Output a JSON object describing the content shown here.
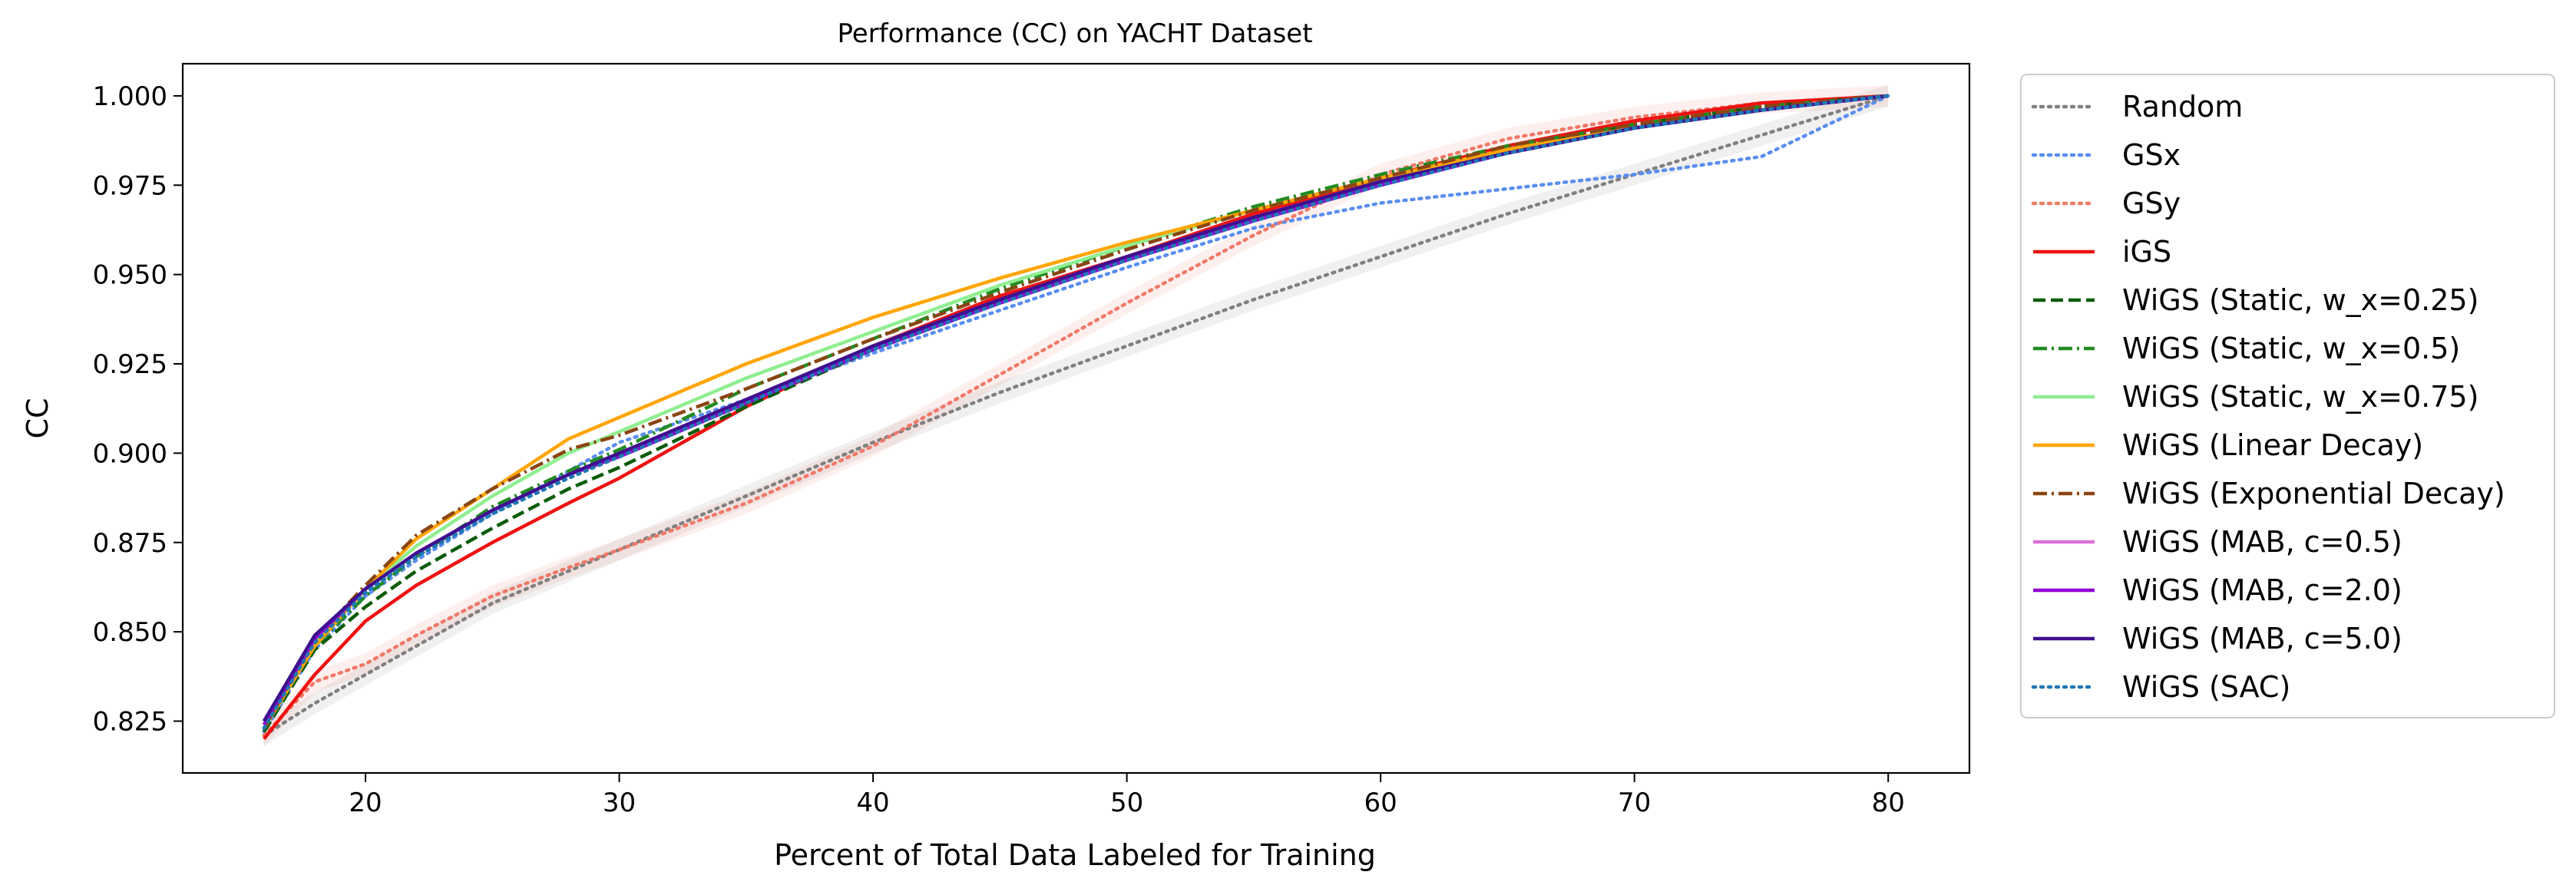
{
  "chart_data": {
    "type": "line",
    "title": "Performance (CC) on YACHT Dataset",
    "xlabel": "Percent of Total Data Labeled for Training",
    "ylabel": "CC",
    "xlim": [
      12.8,
      83.2
    ],
    "ylim": [
      0.8105,
      1.009
    ],
    "xticks": [
      20,
      30,
      40,
      50,
      60,
      70,
      80
    ],
    "xtick_labels": [
      "20",
      "30",
      "40",
      "50",
      "60",
      "70",
      "80"
    ],
    "yticks": [
      0.825,
      0.85,
      0.875,
      0.9,
      0.925,
      0.95,
      0.975,
      1.0
    ],
    "ytick_labels": [
      "0.825",
      "0.850",
      "0.875",
      "0.900",
      "0.925",
      "0.950",
      "0.975",
      "1.000"
    ],
    "grid": false,
    "legend_position": "outside-right",
    "series": [
      {
        "name": "Random",
        "color": "#808080",
        "dash": "dotted",
        "band": true,
        "x": [
          16,
          18,
          20,
          22,
          25,
          28,
          30,
          35,
          40,
          45,
          50,
          55,
          60,
          65,
          70,
          75,
          80
        ],
        "y": [
          0.821,
          0.83,
          0.838,
          0.846,
          0.858,
          0.867,
          0.873,
          0.888,
          0.903,
          0.917,
          0.93,
          0.943,
          0.955,
          0.967,
          0.978,
          0.989,
          1.0
        ]
      },
      {
        "name": "GSx",
        "color": "#5a8ef0",
        "dash": "dotted",
        "band": false,
        "x": [
          16,
          18,
          20,
          22,
          25,
          28,
          30,
          35,
          40,
          45,
          50,
          55,
          60,
          65,
          70,
          75,
          80
        ],
        "y": [
          0.822,
          0.845,
          0.86,
          0.87,
          0.883,
          0.895,
          0.903,
          0.915,
          0.928,
          0.94,
          0.952,
          0.963,
          0.97,
          0.974,
          0.978,
          0.983,
          1.0
        ]
      },
      {
        "name": "GSy",
        "color": "#f07868",
        "dash": "dotted",
        "band": true,
        "x": [
          16,
          18,
          20,
          22,
          25,
          28,
          30,
          35,
          40,
          45,
          50,
          55,
          60,
          65,
          70,
          75,
          80
        ],
        "y": [
          0.821,
          0.836,
          0.841,
          0.849,
          0.86,
          0.868,
          0.873,
          0.886,
          0.902,
          0.922,
          0.942,
          0.961,
          0.978,
          0.988,
          0.994,
          0.998,
          1.0
        ]
      },
      {
        "name": "iGS",
        "color": "#ee1111",
        "dash": "solid",
        "band": false,
        "x": [
          16,
          18,
          20,
          22,
          25,
          28,
          30,
          35,
          40,
          45,
          50,
          55,
          60,
          65,
          70,
          75,
          80
        ],
        "y": [
          0.82,
          0.838,
          0.853,
          0.863,
          0.875,
          0.886,
          0.893,
          0.913,
          0.93,
          0.944,
          0.955,
          0.967,
          0.977,
          0.986,
          0.993,
          0.998,
          1.0
        ]
      },
      {
        "name": "WiGS (Static, w_x=0.25)",
        "color": "#0a5c0a",
        "dash": "dashed",
        "band": false,
        "x": [
          16,
          18,
          20,
          22,
          25,
          28,
          30,
          35,
          40,
          45,
          50,
          55,
          60,
          65,
          70,
          75,
          80
        ],
        "y": [
          0.822,
          0.845,
          0.857,
          0.867,
          0.879,
          0.89,
          0.896,
          0.913,
          0.929,
          0.943,
          0.955,
          0.966,
          0.976,
          0.985,
          0.992,
          0.997,
          1.0
        ]
      },
      {
        "name": "WiGS (Static, w_x=0.5)",
        "color": "#228b22",
        "dash": "dashdot",
        "band": false,
        "x": [
          16,
          18,
          20,
          22,
          25,
          28,
          30,
          35,
          40,
          45,
          50,
          55,
          60,
          65,
          70,
          75,
          80
        ],
        "y": [
          0.823,
          0.846,
          0.86,
          0.871,
          0.885,
          0.895,
          0.901,
          0.918,
          0.932,
          0.946,
          0.958,
          0.969,
          0.978,
          0.986,
          0.992,
          0.997,
          1.0
        ]
      },
      {
        "name": "WiGS (Static, w_x=0.75)",
        "color": "#90ee90",
        "dash": "solid",
        "band": false,
        "x": [
          16,
          18,
          20,
          22,
          25,
          28,
          30,
          35,
          40,
          45,
          50,
          55,
          60,
          65,
          70,
          75,
          80
        ],
        "y": [
          0.823,
          0.847,
          0.862,
          0.874,
          0.888,
          0.9,
          0.906,
          0.921,
          0.934,
          0.947,
          0.958,
          0.968,
          0.977,
          0.985,
          0.991,
          0.996,
          1.0
        ]
      },
      {
        "name": "WiGS (Linear Decay)",
        "color": "#ffa500",
        "dash": "solid",
        "band": false,
        "x": [
          16,
          18,
          20,
          22,
          25,
          28,
          30,
          35,
          40,
          45,
          50,
          55,
          60,
          65,
          70,
          75,
          80
        ],
        "y": [
          0.823,
          0.846,
          0.862,
          0.876,
          0.89,
          0.904,
          0.91,
          0.925,
          0.938,
          0.949,
          0.959,
          0.968,
          0.977,
          0.985,
          0.991,
          0.996,
          1.0
        ]
      },
      {
        "name": "WiGS (Exponential Decay)",
        "color": "#8b4513",
        "dash": "dashdot",
        "band": false,
        "x": [
          16,
          18,
          20,
          22,
          25,
          28,
          30,
          35,
          40,
          45,
          50,
          55,
          60,
          65,
          70,
          75,
          80
        ],
        "y": [
          0.823,
          0.848,
          0.863,
          0.877,
          0.89,
          0.901,
          0.905,
          0.918,
          0.932,
          0.945,
          0.957,
          0.968,
          0.977,
          0.986,
          0.992,
          0.997,
          1.0
        ]
      },
      {
        "name": "WiGS (MAB, c=0.5)",
        "color": "#da70d6",
        "dash": "solid",
        "band": false,
        "x": [
          16,
          18,
          20,
          22,
          25,
          28,
          30,
          35,
          40,
          45,
          50,
          55,
          60,
          65,
          70,
          75,
          80
        ],
        "y": [
          0.824,
          0.848,
          0.862,
          0.872,
          0.884,
          0.894,
          0.9,
          0.915,
          0.93,
          0.943,
          0.955,
          0.966,
          0.976,
          0.984,
          0.991,
          0.996,
          1.0
        ]
      },
      {
        "name": "WiGS (MAB, c=2.0)",
        "color": "#9400d3",
        "dash": "solid",
        "band": false,
        "x": [
          16,
          18,
          20,
          22,
          25,
          28,
          30,
          35,
          40,
          45,
          50,
          55,
          60,
          65,
          70,
          75,
          80
        ],
        "y": [
          0.824,
          0.848,
          0.862,
          0.872,
          0.884,
          0.894,
          0.899,
          0.914,
          0.929,
          0.942,
          0.954,
          0.965,
          0.975,
          0.984,
          0.991,
          0.996,
          1.0
        ]
      },
      {
        "name": "WiGS (MAB, c=5.0)",
        "color": "#3f0f8f",
        "dash": "solid",
        "band": false,
        "x": [
          16,
          18,
          20,
          22,
          25,
          28,
          30,
          35,
          40,
          45,
          50,
          55,
          60,
          65,
          70,
          75,
          80
        ],
        "y": [
          0.825,
          0.849,
          0.862,
          0.872,
          0.884,
          0.894,
          0.9,
          0.915,
          0.93,
          0.943,
          0.955,
          0.966,
          0.976,
          0.984,
          0.991,
          0.996,
          1.0
        ]
      },
      {
        "name": "WiGS (SAC)",
        "color": "#1f77b4",
        "dash": "dotted",
        "band": false,
        "x": [
          16,
          18,
          20,
          22,
          25,
          28,
          30,
          35,
          40,
          45,
          50,
          55,
          60,
          65,
          70,
          75,
          80
        ],
        "y": [
          0.823,
          0.847,
          0.861,
          0.871,
          0.883,
          0.893,
          0.899,
          0.914,
          0.929,
          0.942,
          0.954,
          0.965,
          0.975,
          0.984,
          0.991,
          0.996,
          1.0
        ]
      }
    ]
  }
}
